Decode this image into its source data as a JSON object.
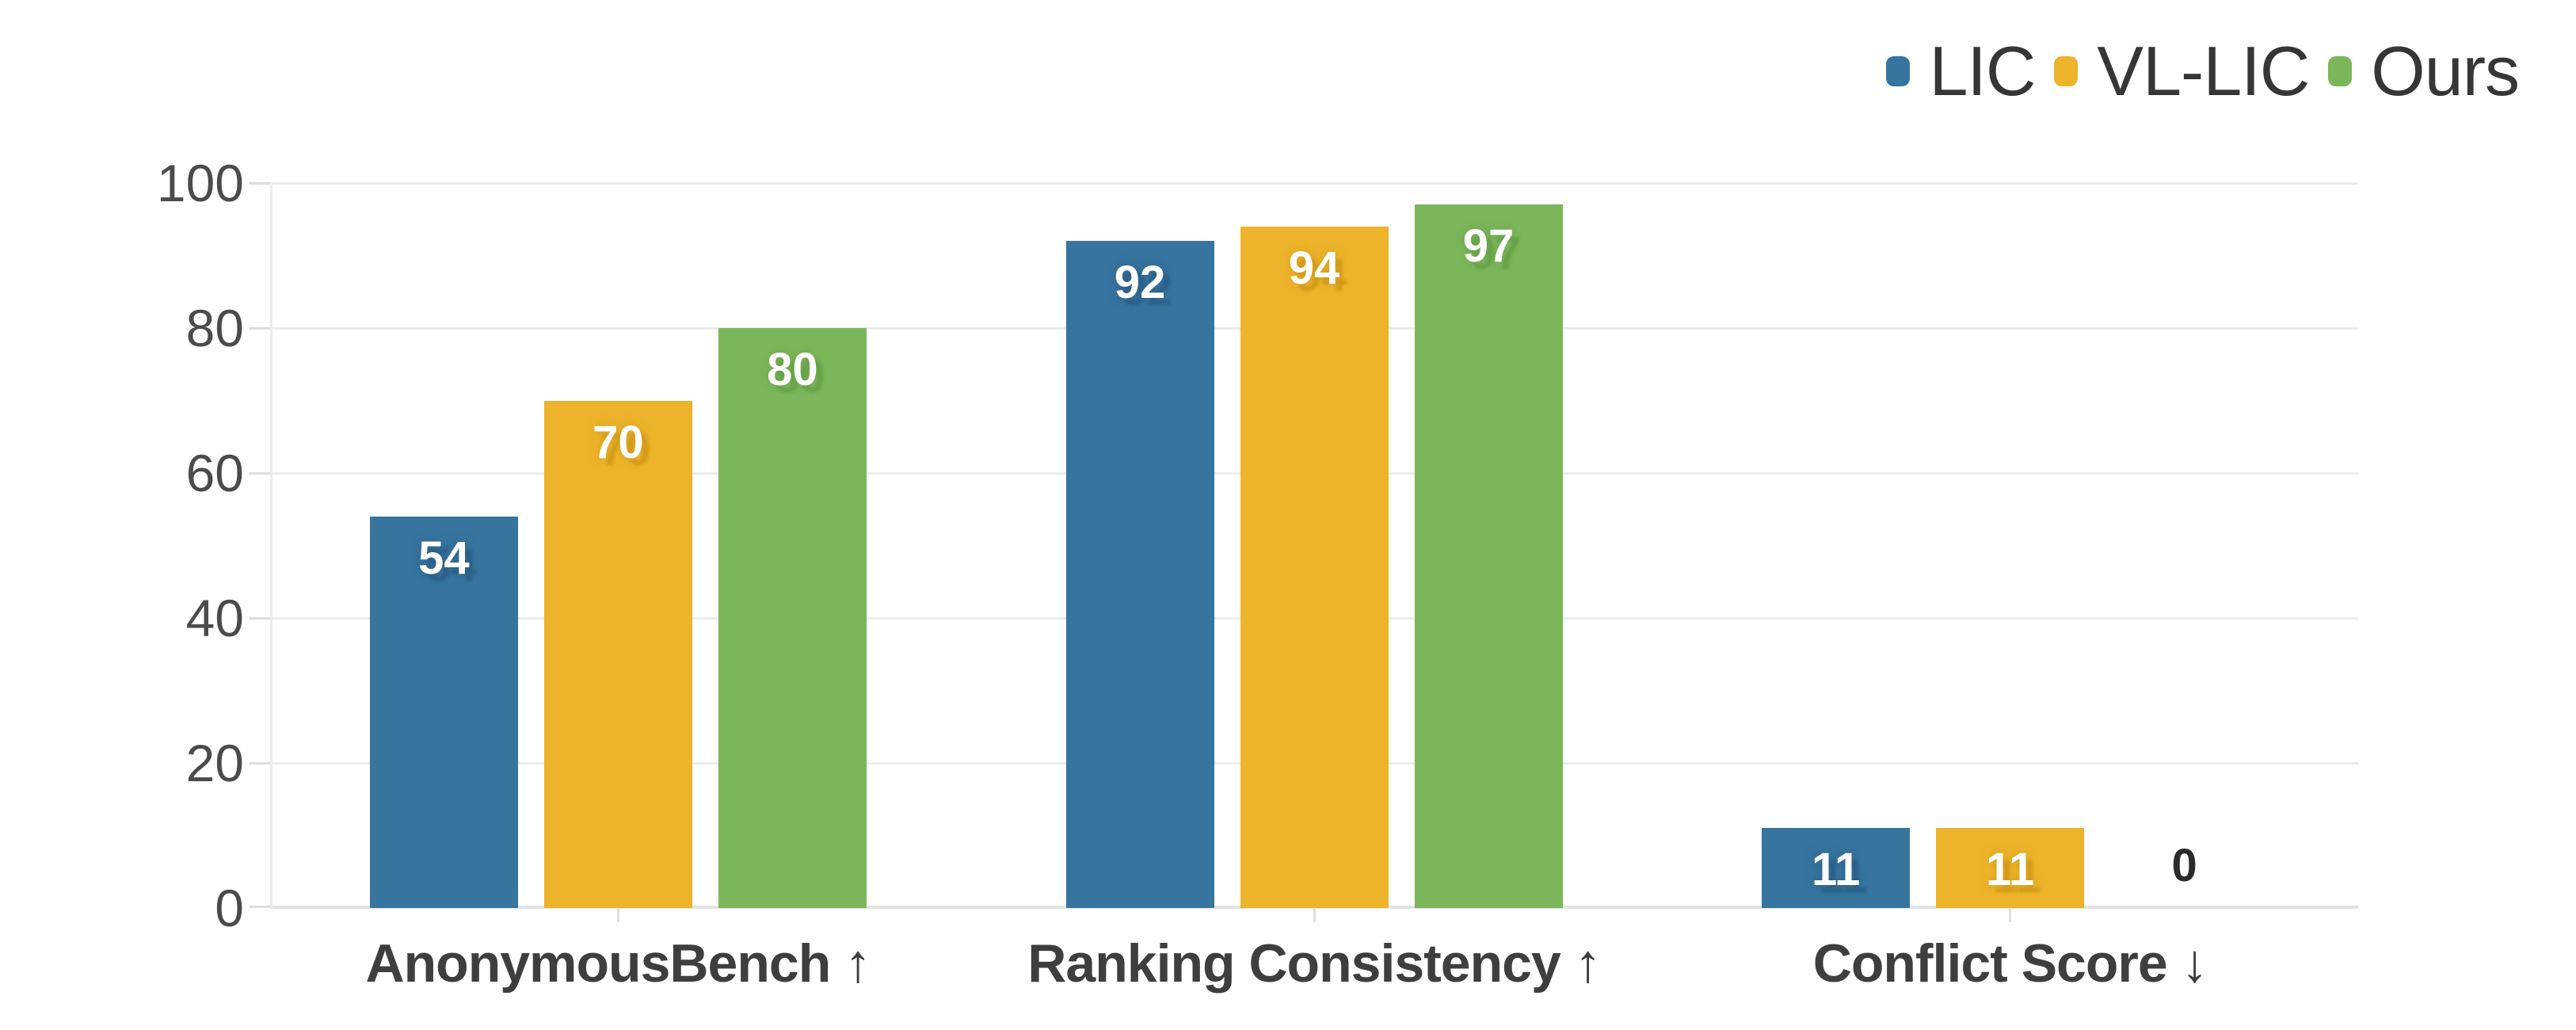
{
  "chart_data": {
    "type": "bar",
    "categories": [
      "AnonymousBench ↑",
      "Ranking Consistency ↑",
      "Conflict Score ↓"
    ],
    "series": [
      {
        "name": "LIC",
        "values": [
          54,
          92,
          11
        ]
      },
      {
        "name": "VL-LIC",
        "values": [
          70,
          94,
          11
        ]
      },
      {
        "name": "Ours",
        "values": [
          80,
          97,
          0
        ]
      }
    ],
    "ylim": [
      0,
      100
    ],
    "yticks": [
      0,
      20,
      40,
      60,
      80,
      100
    ],
    "grid": "horizontal",
    "legend_position": "top-right",
    "value_label_style": "white-bold-inside-top"
  },
  "legend": {
    "items": [
      {
        "label": "LIC"
      },
      {
        "label": "VL-LIC"
      },
      {
        "label": "Ours"
      }
    ]
  },
  "colors": {
    "background": "#ffffff",
    "series": {
      "LIC": "#37749E",
      "VL-LIC": "#ECB32B",
      "Ours": "#7CB65B"
    },
    "value_shadow": {
      "LIC": "#2c618a",
      "VL-LIC": "#d49c1a",
      "Ours": "#68a349"
    },
    "grid": "#ececec",
    "axis": "#e3e3e3",
    "tick": "#dedede",
    "y_tick_label": "#4b4b4b",
    "category_label": "#3e3e3e",
    "legend_text": "#363636",
    "value_label": "#ffffff",
    "zero_value_label": "#2b2b2b"
  }
}
